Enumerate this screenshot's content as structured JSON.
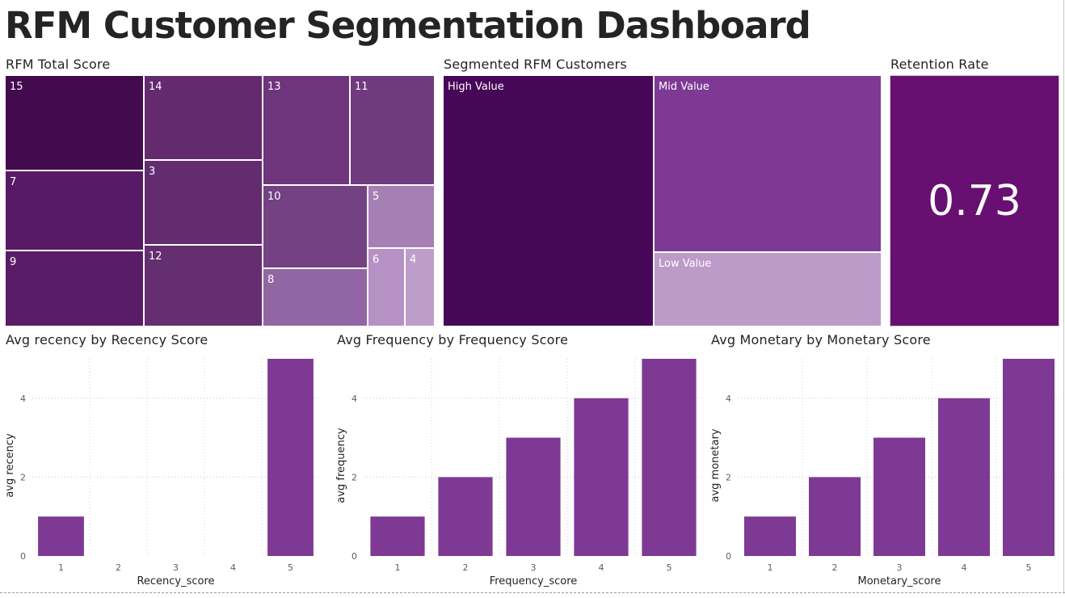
{
  "dashboard": {
    "title": "RFM Customer Segmentation Dashboard"
  },
  "total_score_treemap": {
    "title": "RFM Total Score",
    "tiles": [
      {
        "label": "15",
        "color": "#440a4e"
      },
      {
        "label": "7",
        "color": "#581a64"
      },
      {
        "label": "9",
        "color": "#5b1c67"
      },
      {
        "label": "14",
        "color": "#632b6e"
      },
      {
        "label": "3",
        "color": "#632c6f"
      },
      {
        "label": "12",
        "color": "#652e70"
      },
      {
        "label": "13",
        "color": "#6e357c"
      },
      {
        "label": "11",
        "color": "#703a7e"
      },
      {
        "label": "10",
        "color": "#744283"
      },
      {
        "label": "8",
        "color": "#9265a4"
      },
      {
        "label": "5",
        "color": "#a67fb5"
      },
      {
        "label": "6",
        "color": "#b692c4"
      },
      {
        "label": "4",
        "color": "#be9dcb"
      }
    ]
  },
  "segment_treemap": {
    "title": "Segmented RFM Customers",
    "tiles": [
      {
        "label": "High Value",
        "color": "#470758"
      },
      {
        "label": "Mid Value",
        "color": "#7e3994"
      },
      {
        "label": "Low Value",
        "color": "#bd9bc9"
      }
    ]
  },
  "retention_card": {
    "title": "Retention Rate",
    "value": "0.73"
  },
  "chart_data": [
    {
      "type": "bar",
      "title": "Avg recency by Recency Score",
      "xlabel": "Recency_score",
      "ylabel": "avg recency",
      "categories": [
        "1",
        "2",
        "3",
        "4",
        "5"
      ],
      "values": [
        1,
        0,
        0,
        0,
        5
      ],
      "ylim": [
        0,
        5
      ],
      "yticks": [
        "0",
        "2",
        "4"
      ],
      "grid": true,
      "color": "#7e3994"
    },
    {
      "type": "bar",
      "title": "Avg Frequency by Frequency Score",
      "xlabel": "Frequency_score",
      "ylabel": "avg frequency",
      "categories": [
        "1",
        "2",
        "3",
        "4",
        "5"
      ],
      "values": [
        1,
        2,
        3,
        4,
        5
      ],
      "ylim": [
        0,
        5
      ],
      "yticks": [
        "0",
        "2",
        "4"
      ],
      "grid": true,
      "color": "#7e3994"
    },
    {
      "type": "bar",
      "title": "Avg Monetary by Monetary Score",
      "xlabel": "Monetary_score",
      "ylabel": "avg monetary",
      "categories": [
        "1",
        "2",
        "3",
        "4",
        "5"
      ],
      "values": [
        1,
        2,
        3,
        4,
        5
      ],
      "ylim": [
        0,
        5
      ],
      "yticks": [
        "0",
        "2",
        "4"
      ],
      "grid": true,
      "color": "#7e3994"
    }
  ]
}
